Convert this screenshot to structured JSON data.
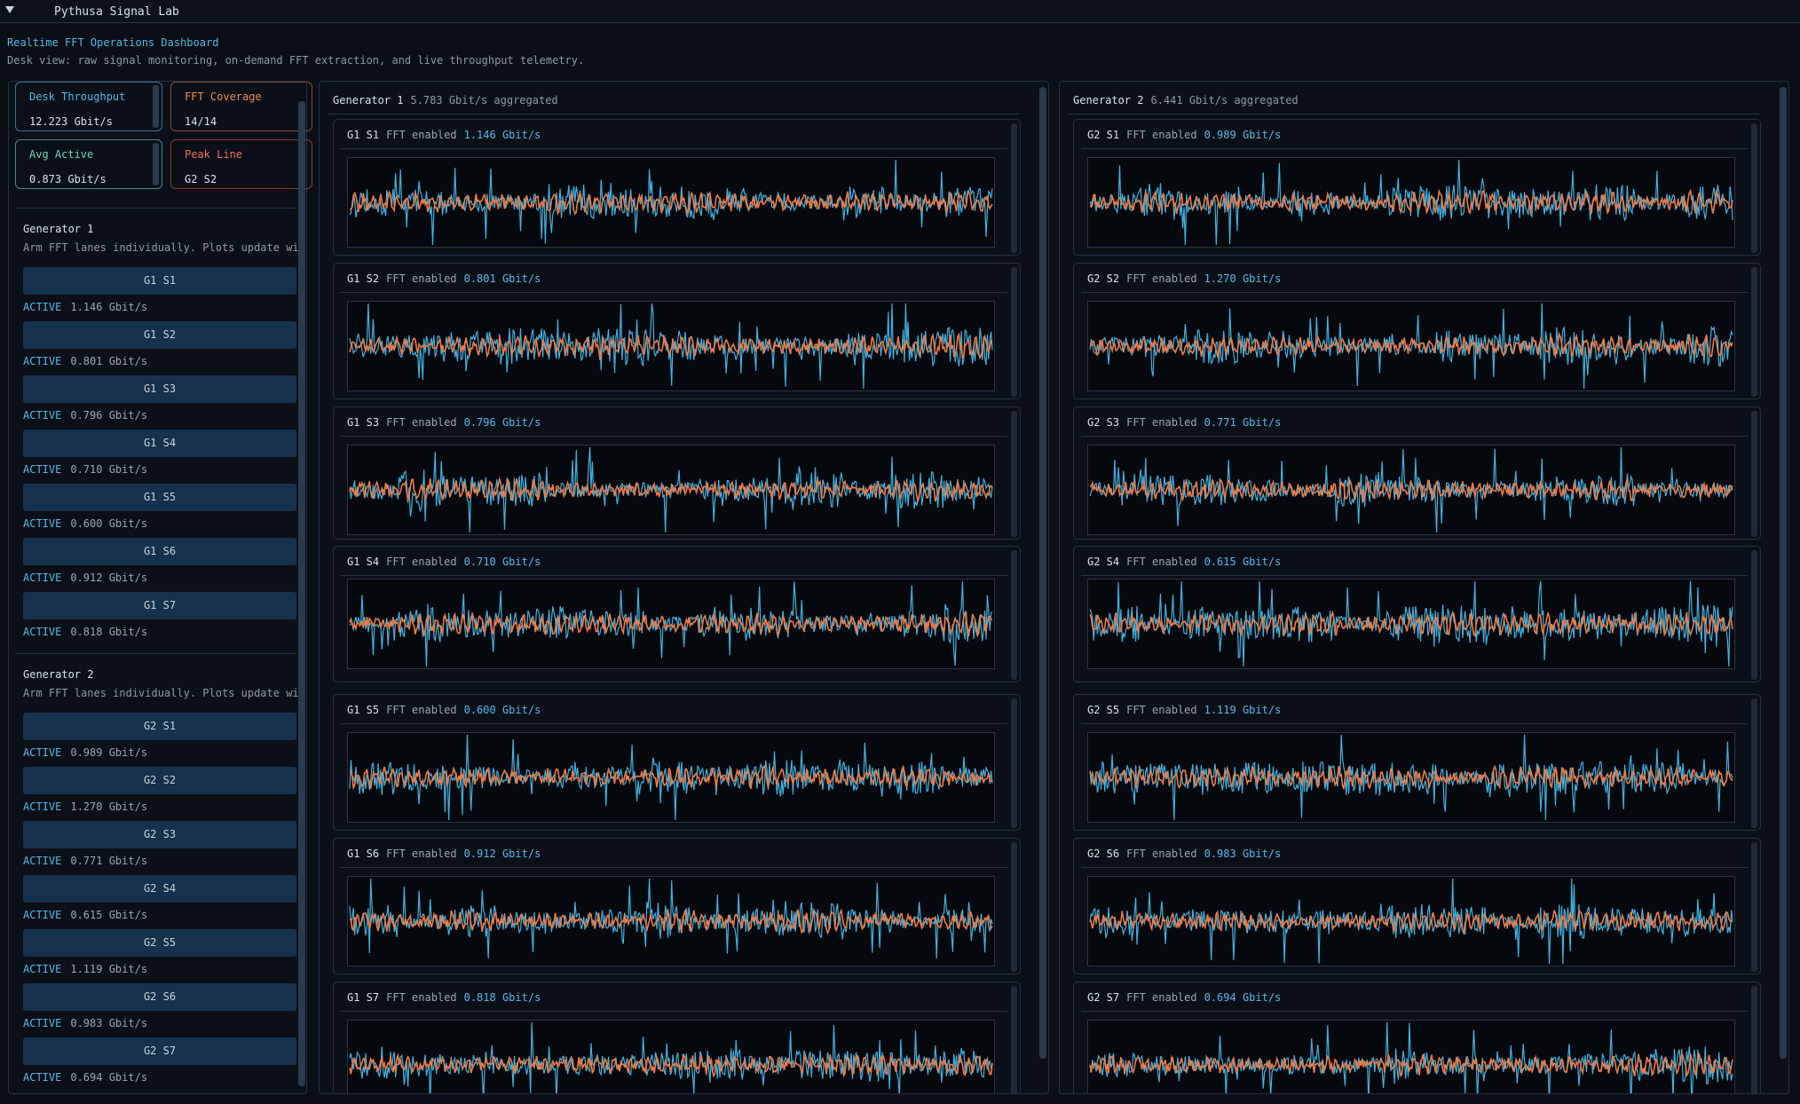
{
  "window": {
    "title": "Pythusa Signal Lab",
    "heading": "Realtime FFT Operations Dashboard",
    "subtitle": "Desk view: raw signal monitoring, on-demand FFT extraction, and live throughput telemetry."
  },
  "stats": {
    "desk_throughput": {
      "label": "Desk Throughput",
      "value": "12.223 Gbit/s"
    },
    "fft_coverage": {
      "label": "FFT Coverage",
      "value": "14/14"
    },
    "avg_active": {
      "label": "Avg Active",
      "value": "0.873 Gbit/s"
    },
    "peak_line": {
      "label": "Peak Line",
      "value": "G2 S2"
    }
  },
  "colors": {
    "raw_signal": "#3fb3e0",
    "fft_signal": "#f07a45",
    "accent": "#54b9e6"
  },
  "sidebar": {
    "groups": [
      {
        "heading": "Generator 1",
        "description": "Arm FFT lanes individually. Plots update with",
        "lanes": [
          {
            "label": "G1 S1",
            "status": "ACTIVE",
            "rate": "1.146 Gbit/s"
          },
          {
            "label": "G1 S2",
            "status": "ACTIVE",
            "rate": "0.801 Gbit/s"
          },
          {
            "label": "G1 S3",
            "status": "ACTIVE",
            "rate": "0.796 Gbit/s"
          },
          {
            "label": "G1 S4",
            "status": "ACTIVE",
            "rate": "0.710 Gbit/s"
          },
          {
            "label": "G1 S5",
            "status": "ACTIVE",
            "rate": "0.600 Gbit/s"
          },
          {
            "label": "G1 S6",
            "status": "ACTIVE",
            "rate": "0.912 Gbit/s"
          },
          {
            "label": "G1 S7",
            "status": "ACTIVE",
            "rate": "0.818 Gbit/s"
          }
        ]
      },
      {
        "heading": "Generator 2",
        "description": "Arm FFT lanes individually. Plots update with",
        "lanes": [
          {
            "label": "G2 S1",
            "status": "ACTIVE",
            "rate": "0.989 Gbit/s"
          },
          {
            "label": "G2 S2",
            "status": "ACTIVE",
            "rate": "1.270 Gbit/s"
          },
          {
            "label": "G2 S3",
            "status": "ACTIVE",
            "rate": "0.771 Gbit/s"
          },
          {
            "label": "G2 S4",
            "status": "ACTIVE",
            "rate": "0.615 Gbit/s"
          },
          {
            "label": "G2 S5",
            "status": "ACTIVE",
            "rate": "1.119 Gbit/s"
          },
          {
            "label": "G2 S6",
            "status": "ACTIVE",
            "rate": "0.983 Gbit/s"
          },
          {
            "label": "G2 S7",
            "status": "ACTIVE",
            "rate": "0.694 Gbit/s"
          }
        ]
      }
    ]
  },
  "generators": [
    {
      "name": "Generator 1",
      "aggregate": "5.783 Gbit/s aggregated",
      "lanes": [
        {
          "id": "G1 S1",
          "fft": "FFT enabled",
          "rate": "1.146 Gbit/s"
        },
        {
          "id": "G1 S2",
          "fft": "FFT enabled",
          "rate": "0.801 Gbit/s"
        },
        {
          "id": "G1 S3",
          "fft": "FFT enabled",
          "rate": "0.796 Gbit/s"
        },
        {
          "id": "G1 S4",
          "fft": "FFT enabled",
          "rate": "0.710 Gbit/s"
        },
        {
          "id": "G1 S5",
          "fft": "FFT enabled",
          "rate": "0.600 Gbit/s"
        },
        {
          "id": "G1 S6",
          "fft": "FFT enabled",
          "rate": "0.912 Gbit/s"
        },
        {
          "id": "G1 S7",
          "fft": "FFT enabled",
          "rate": "0.818 Gbit/s"
        }
      ]
    },
    {
      "name": "Generator 2",
      "aggregate": "6.441 Gbit/s aggregated",
      "lanes": [
        {
          "id": "G2 S1",
          "fft": "FFT enabled",
          "rate": "0.989 Gbit/s"
        },
        {
          "id": "G2 S2",
          "fft": "FFT enabled",
          "rate": "1.270 Gbit/s"
        },
        {
          "id": "G2 S3",
          "fft": "FFT enabled",
          "rate": "0.771 Gbit/s"
        },
        {
          "id": "G2 S4",
          "fft": "FFT enabled",
          "rate": "0.615 Gbit/s"
        },
        {
          "id": "G2 S5",
          "fft": "FFT enabled",
          "rate": "1.119 Gbit/s"
        },
        {
          "id": "G2 S6",
          "fft": "FFT enabled",
          "rate": "0.983 Gbit/s"
        },
        {
          "id": "G2 S7",
          "fft": "FFT enabled",
          "rate": "0.694 Gbit/s"
        }
      ]
    }
  ]
}
